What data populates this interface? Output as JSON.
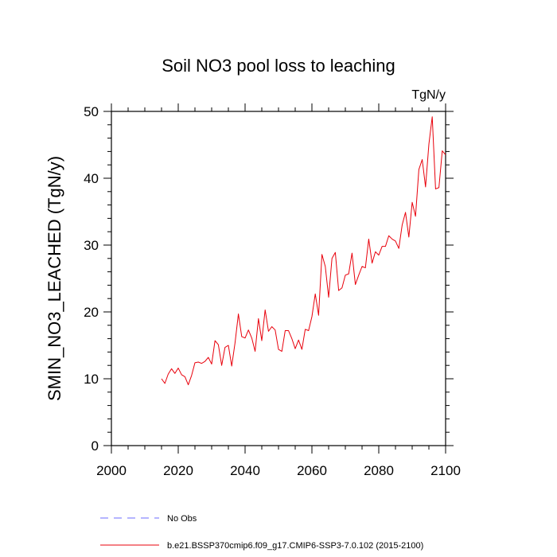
{
  "chart_data": {
    "type": "line",
    "title": "Soil NO3 pool loss to leaching",
    "units": "TgN/y",
    "ylabel": "SMIN_NO3_LEACHED  (TgN/y)",
    "xlabel": "",
    "xlim": [
      2000,
      2100
    ],
    "ylim": [
      0,
      50
    ],
    "xticks": [
      2000,
      2020,
      2040,
      2060,
      2080,
      2100
    ],
    "yticks": [
      0,
      10,
      20,
      30,
      40,
      50
    ],
    "grid": false,
    "legend_placement": "bottom",
    "legend": [
      {
        "label": "No Obs",
        "color": "#6b6bff",
        "style": "dashed"
      },
      {
        "label": "b.e21.BSSP370cmip6.f09_g17.CMIP6-SSP3-7.0.102 (2015-2100)",
        "color": "#e8000b",
        "style": "solid"
      }
    ],
    "series": [
      {
        "name": "b.e21.BSSP370cmip6.f09_g17.CMIP6-SSP3-7.0.102 (2015-2100)",
        "color": "#e8000b",
        "x": [
          2015,
          2016,
          2017,
          2018,
          2019,
          2020,
          2021,
          2022,
          2023,
          2024,
          2025,
          2026,
          2027,
          2028,
          2029,
          2030,
          2031,
          2032,
          2033,
          2034,
          2035,
          2036,
          2037,
          2038,
          2039,
          2040,
          2041,
          2042,
          2043,
          2044,
          2045,
          2046,
          2047,
          2048,
          2049,
          2050,
          2051,
          2052,
          2053,
          2054,
          2055,
          2056,
          2057,
          2058,
          2059,
          2060,
          2061,
          2062,
          2063,
          2064,
          2065,
          2066,
          2067,
          2068,
          2069,
          2070,
          2071,
          2072,
          2073,
          2074,
          2075,
          2076,
          2077,
          2078,
          2079,
          2080,
          2081,
          2082,
          2083,
          2084,
          2085,
          2086,
          2087,
          2088,
          2089,
          2090,
          2091,
          2092,
          2093,
          2094,
          2095,
          2096,
          2097,
          2098,
          2099,
          2100
        ],
        "y": [
          10.0,
          9.3,
          10.7,
          11.5,
          10.8,
          11.6,
          10.6,
          10.3,
          9.1,
          10.5,
          12.4,
          12.5,
          12.3,
          12.6,
          13.2,
          12.2,
          15.7,
          15.1,
          12.0,
          14.7,
          15.0,
          11.9,
          15.4,
          19.7,
          16.3,
          16.1,
          17.3,
          16.1,
          14.1,
          19.0,
          15.7,
          20.3,
          17.1,
          17.8,
          17.3,
          14.4,
          14.1,
          17.2,
          17.2,
          16.0,
          14.5,
          15.8,
          14.4,
          17.4,
          17.2,
          19.3,
          22.7,
          19.5,
          28.6,
          26.8,
          22.2,
          28.0,
          28.9,
          23.2,
          23.6,
          25.5,
          25.7,
          28.8,
          24.1,
          25.5,
          26.8,
          26.6,
          30.9,
          27.3,
          29.0,
          28.5,
          29.8,
          29.8,
          31.4,
          30.9,
          30.6,
          29.5,
          33.0,
          34.9,
          31.2,
          36.4,
          34.3,
          41.3,
          42.8,
          38.7,
          45.1,
          49.2,
          38.4,
          38.6,
          44.1,
          43.5
        ]
      }
    ]
  }
}
